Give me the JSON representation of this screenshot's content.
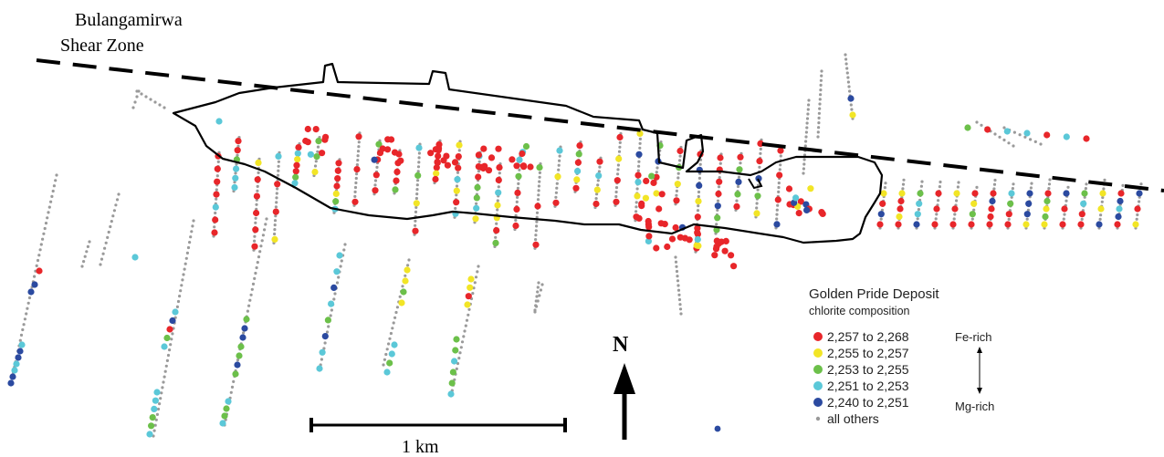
{
  "map": {
    "shear_zone_label_line1": "Bulangamirwa",
    "shear_zone_label_line2": "Shear Zone",
    "north_label": "N",
    "scale_label": "1 km"
  },
  "legend": {
    "title": "Golden Pride Deposit",
    "subtitle": "chlorite composition",
    "items": [
      {
        "label": "2,257 to 2,268",
        "color": "#e8262a"
      },
      {
        "label": "2,255 to 2,257",
        "color": "#f2e526"
      },
      {
        "label": "2,253 to 2,255",
        "color": "#6cc04a"
      },
      {
        "label": "2,251 to 2,253",
        "color": "#5bc8d8"
      },
      {
        "label": "2,240 to 2,251",
        "color": "#2b4aa0"
      },
      {
        "label": "all others",
        "color": "#999999"
      }
    ],
    "top_end_label": "Fe-rich",
    "bottom_end_label": "Mg-rich"
  }
}
